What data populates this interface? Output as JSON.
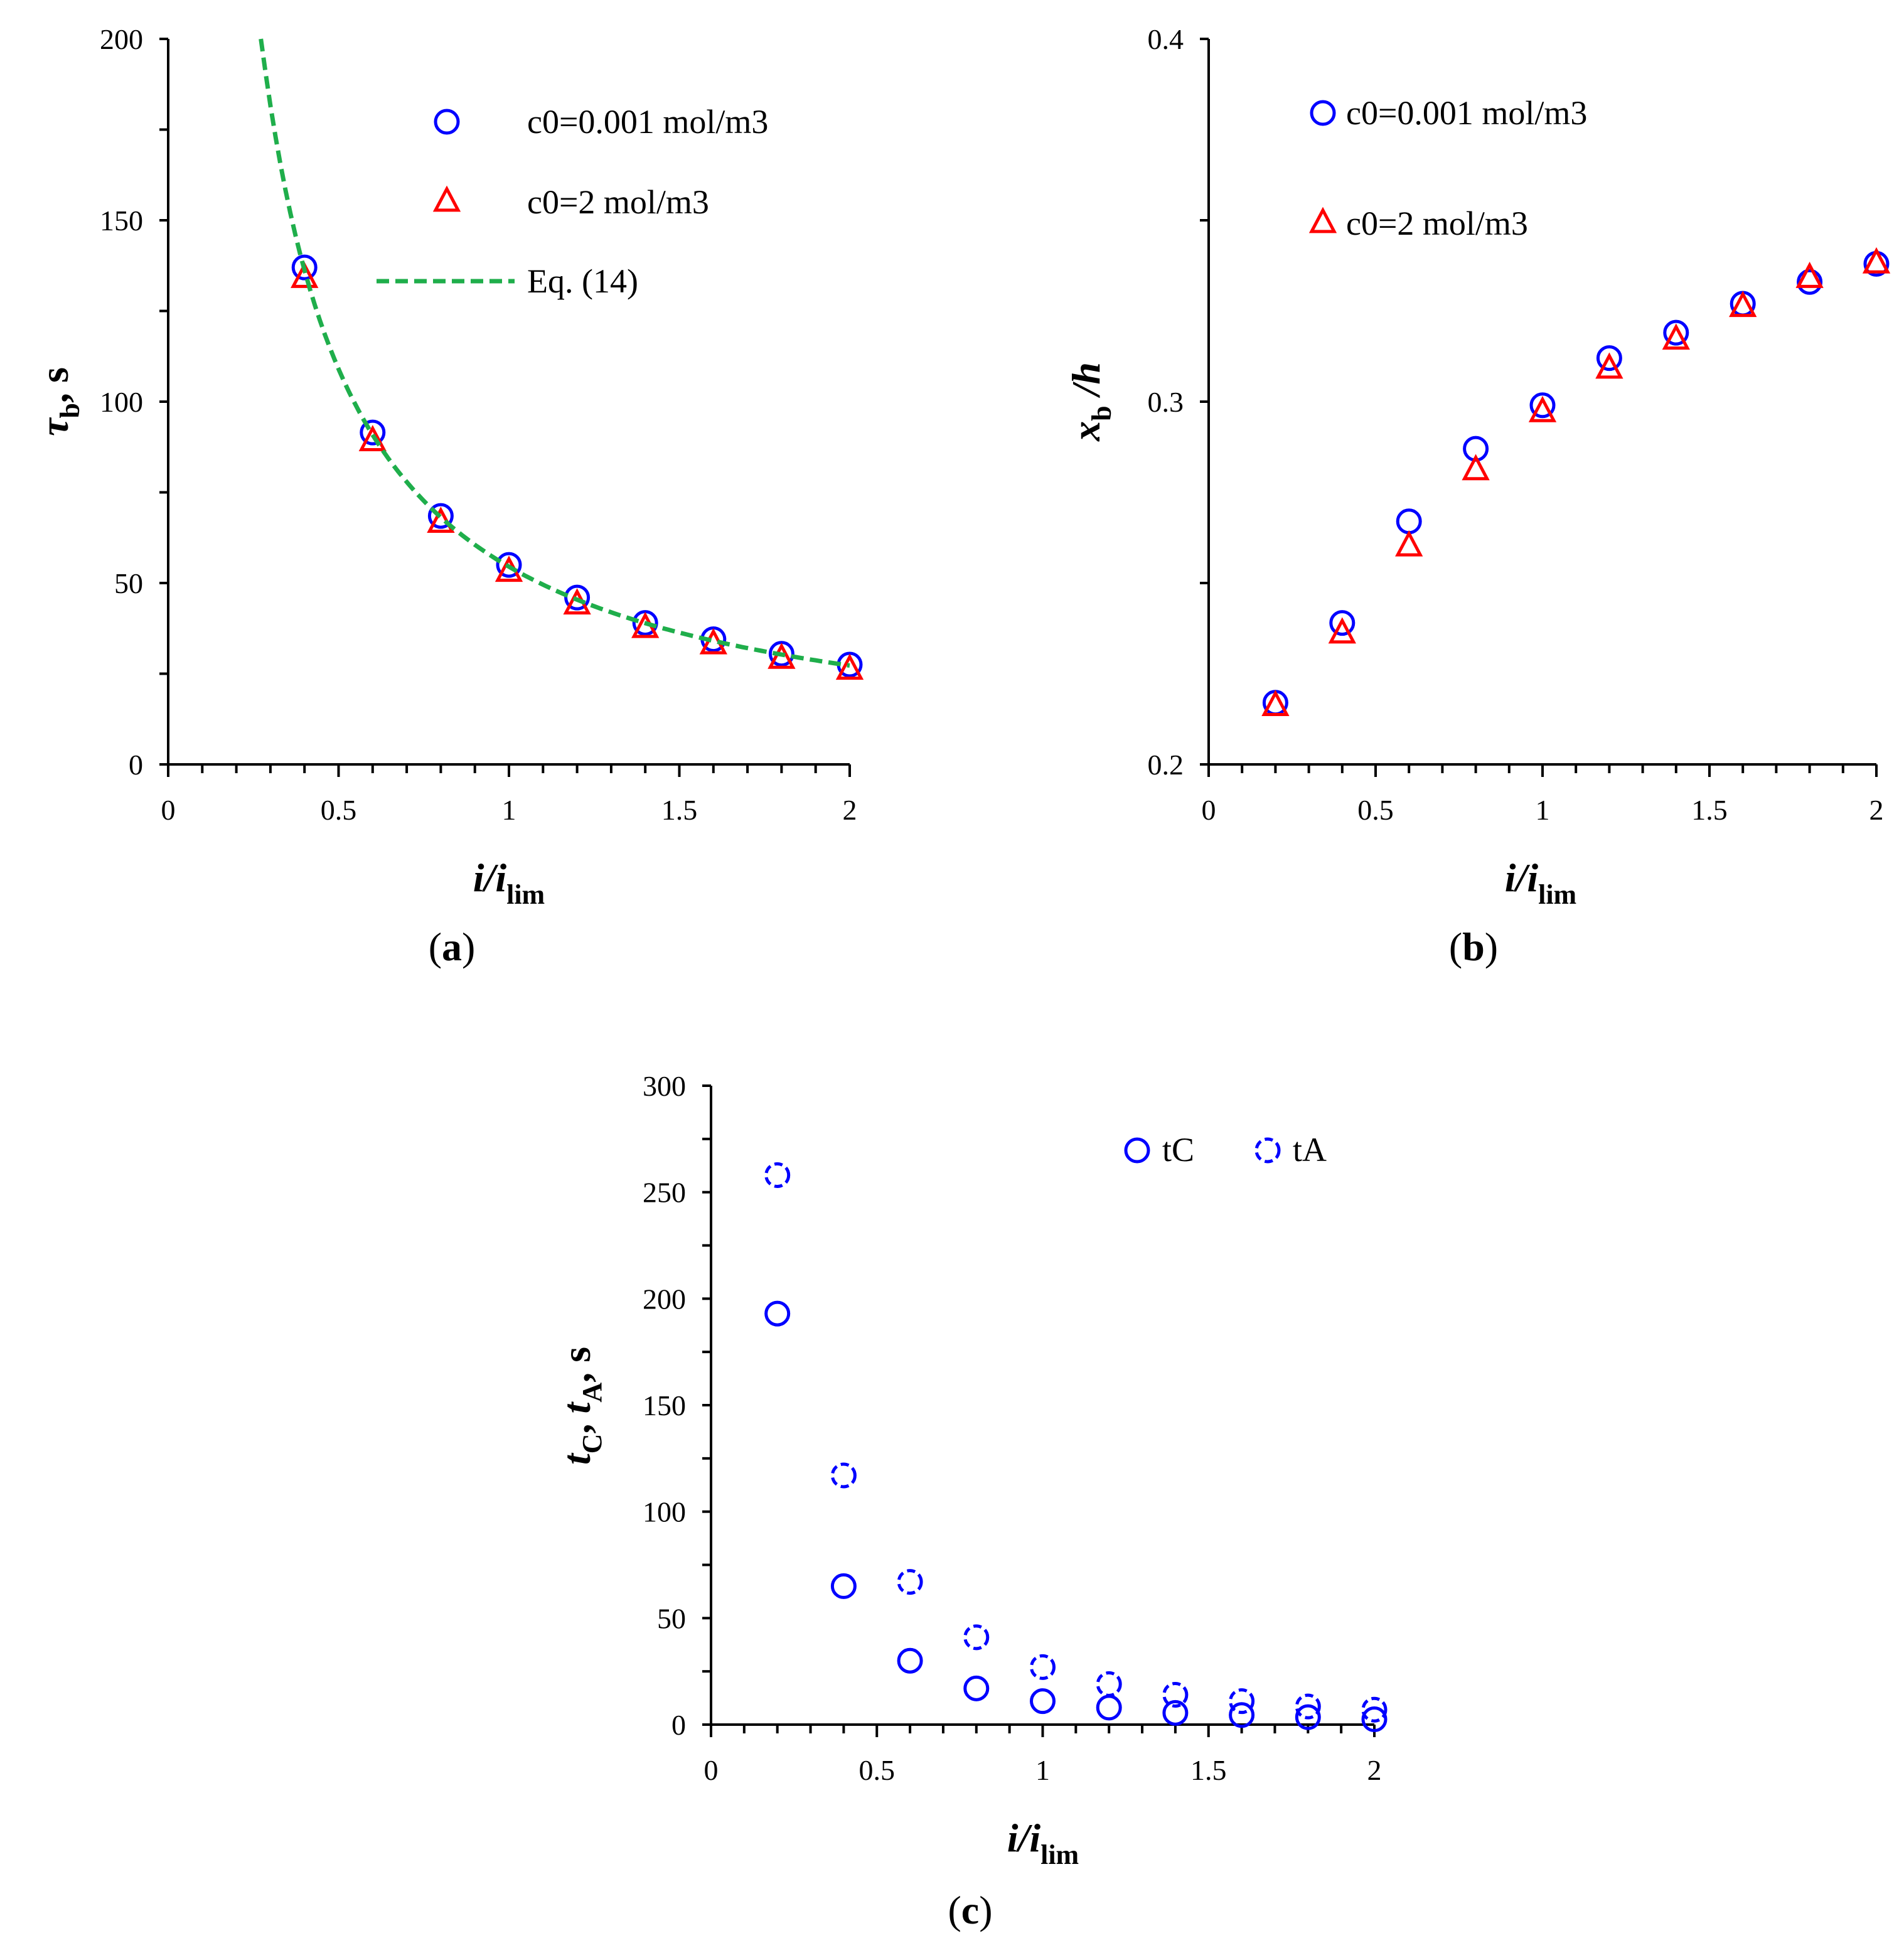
{
  "colors": {
    "series_a": "#0000ff",
    "series_b": "#ff0000",
    "fit_line": "#1fae4b"
  },
  "chart_data": [
    {
      "panel": "a",
      "type": "scatter",
      "panel_label": "a",
      "xlabel_main": "i/i",
      "xlabel_sub": "lim",
      "ylabel_main": "τ",
      "ylabel_sub": "b",
      "ylabel_tail": ", s",
      "xlim": [
        0,
        2
      ],
      "ylim": [
        0,
        200
      ],
      "xticks": [
        0,
        0.5,
        1,
        1.5,
        2
      ],
      "xtick_labels": [
        "0",
        "0.5",
        "1",
        "1.5",
        "2"
      ],
      "yticks": [
        0,
        50,
        100,
        150,
        200
      ],
      "ytick_labels": [
        "0",
        "50",
        "100",
        "150",
        "200"
      ],
      "series": [
        {
          "name": "c0=0.001 mol/m3",
          "marker": "circle",
          "color": "#0000ff",
          "x": [
            0.4,
            0.6,
            0.8,
            1.0,
            1.2,
            1.4,
            1.6,
            1.8,
            2.0
          ],
          "y": [
            137,
            91.5,
            68.5,
            55,
            46,
            39,
            34.5,
            30.5,
            27.5
          ]
        },
        {
          "name": "c0=2 mol/m3",
          "marker": "triangle",
          "color": "#ff0000",
          "x": [
            0.4,
            0.6,
            0.8,
            1.0,
            1.2,
            1.4,
            1.6,
            1.8,
            2.0
          ],
          "y": [
            134,
            89,
            66.5,
            53,
            44,
            37.5,
            33,
            29,
            26
          ]
        },
        {
          "name": "Eq. (14)",
          "marker": "dashed-line",
          "color": "#1fae4b",
          "formula": "y = 54.5 / x",
          "x_range": [
            0.272,
            2.0
          ]
        }
      ],
      "legend": [
        "c0=0.001 mol/m3",
        "c0=2 mol/m3",
        "Eq. (14)"
      ]
    },
    {
      "panel": "b",
      "type": "scatter",
      "panel_label": "b",
      "xlabel_main": "i/i",
      "xlabel_sub": "lim",
      "ylabel_main": "x",
      "ylabel_sub": "b",
      "ylabel_tail": " /h",
      "xlim": [
        0,
        2
      ],
      "ylim": [
        0.2,
        0.4
      ],
      "xticks": [
        0,
        0.5,
        1,
        1.5,
        2
      ],
      "xtick_labels": [
        "0",
        "0.5",
        "1",
        "1.5",
        "2"
      ],
      "yticks": [
        0.2,
        0.3,
        0.4
      ],
      "ytick_labels": [
        "0.2",
        "0.3",
        "0.4"
      ],
      "series": [
        {
          "name": "c0=0.001 mol/m3",
          "marker": "circle",
          "color": "#0000ff",
          "x": [
            0.2,
            0.4,
            0.6,
            0.8,
            1.0,
            1.2,
            1.4,
            1.6,
            1.8,
            2.0
          ],
          "y": [
            0.217,
            0.239,
            0.267,
            0.287,
            0.299,
            0.312,
            0.319,
            0.327,
            0.333,
            0.338
          ]
        },
        {
          "name": "c0=2 mol/m3",
          "marker": "triangle",
          "color": "#ff0000",
          "x": [
            0.2,
            0.4,
            0.6,
            0.8,
            1.0,
            1.2,
            1.4,
            1.6,
            1.8,
            2.0
          ],
          "y": [
            0.216,
            0.236,
            0.26,
            0.281,
            0.297,
            0.309,
            0.317,
            0.326,
            0.334,
            0.338
          ]
        }
      ],
      "legend": [
        "c0=0.001 mol/m3",
        "c0=2 mol/m3"
      ]
    },
    {
      "panel": "c",
      "type": "scatter",
      "panel_label": "c",
      "xlabel_main": "i/i",
      "xlabel_sub": "lim",
      "ylabel_parts": [
        "t",
        "C",
        ", ",
        "t",
        "A",
        ", s"
      ],
      "xlim": [
        0,
        2
      ],
      "ylim": [
        0,
        300
      ],
      "xticks": [
        0,
        0.5,
        1,
        1.5,
        2
      ],
      "xtick_labels": [
        "0",
        "0.5",
        "1",
        "1.5",
        "2"
      ],
      "yticks": [
        0,
        50,
        100,
        150,
        200,
        250,
        300
      ],
      "ytick_labels": [
        "0",
        "50",
        "100",
        "150",
        "200",
        "250",
        "300"
      ],
      "series": [
        {
          "name": "tC",
          "marker": "circle",
          "color": "#0000ff",
          "x": [
            0.2,
            0.4,
            0.6,
            0.8,
            1.0,
            1.2,
            1.4,
            1.6,
            1.8,
            2.0
          ],
          "y": [
            193,
            65,
            30,
            17,
            11,
            8,
            5.5,
            4.5,
            3.5,
            2.5
          ]
        },
        {
          "name": "tA",
          "marker": "dashed-circle",
          "color": "#0000ff",
          "x": [
            0.2,
            0.4,
            0.6,
            0.8,
            1.0,
            1.2,
            1.4,
            1.6,
            1.8,
            2.0
          ],
          "y": [
            258,
            117,
            67,
            41,
            27,
            19,
            14,
            11,
            8.5,
            7
          ]
        }
      ],
      "legend": [
        "tC",
        "tA"
      ]
    }
  ]
}
